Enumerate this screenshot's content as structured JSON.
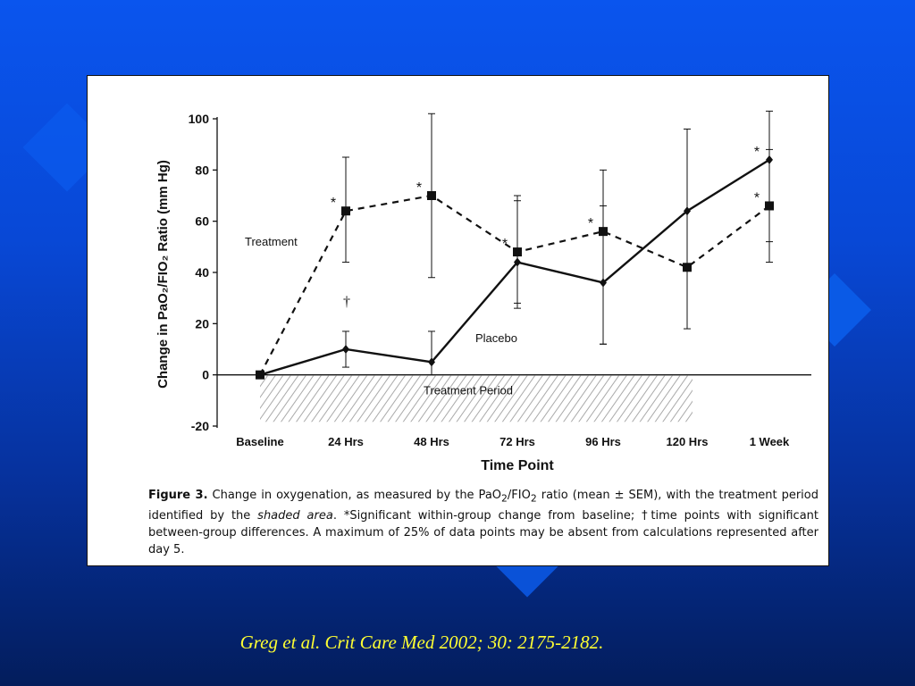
{
  "chart_data": {
    "type": "line",
    "title": "",
    "xlabel": "Time Point",
    "ylabel": "Change in PaO₂/FIO₂ Ratio (mm Hg)",
    "ylim": [
      -20,
      100
    ],
    "yticks": [
      -20,
      0,
      20,
      40,
      60,
      80,
      100
    ],
    "categories": [
      "Baseline",
      "24 Hrs",
      "48 Hrs",
      "72 Hrs",
      "96 Hrs",
      "120 Hrs",
      "1 Week"
    ],
    "grid": false,
    "legend": "none",
    "series": [
      {
        "name": "Treatment",
        "style": "dashed",
        "marker": "square",
        "values": [
          0,
          64,
          70,
          48,
          56,
          42,
          66
        ],
        "error_high": [
          0,
          85,
          102,
          70,
          80,
          0,
          88
        ],
        "error_low": [
          0,
          44,
          38,
          26,
          12,
          0,
          44
        ],
        "significance": [
          "",
          "*",
          "*",
          "*",
          "*",
          "",
          "*"
        ]
      },
      {
        "name": "Placebo",
        "style": "solid",
        "marker": "diamond",
        "values": [
          0,
          10,
          5,
          44,
          36,
          64,
          84
        ],
        "error_high": [
          0,
          17,
          17,
          68,
          66,
          96,
          103
        ],
        "error_low": [
          0,
          3,
          0,
          28,
          12,
          18,
          52
        ],
        "significance": [
          "",
          "",
          "",
          "",
          "",
          "",
          "*"
        ]
      }
    ],
    "annotations": {
      "dagger": "†",
      "shaded_region_label": "Treatment Period",
      "shaded_region_range": [
        "Baseline",
        "120 Hrs"
      ]
    },
    "colors": {
      "lines": "#111111",
      "shading": "#9a9a9a"
    }
  },
  "caption": {
    "label": "Figure 3.",
    "part1": " Change in oxygenation, as measured by the PaO",
    "sub1": "2",
    "part2": "/FIO",
    "sub2": "2",
    "part3": " ratio (mean ± SEM), with the treatment period identified by the ",
    "emphasis": "shaded area",
    "part4": ". *Significant within-group change from baseline; †time points with significant between-group differences. A maximum of 25% of data points may be absent from calculations represented after day 5."
  },
  "citation": "Greg et al. Crit Care Med 2002; 30: 2175-2182."
}
